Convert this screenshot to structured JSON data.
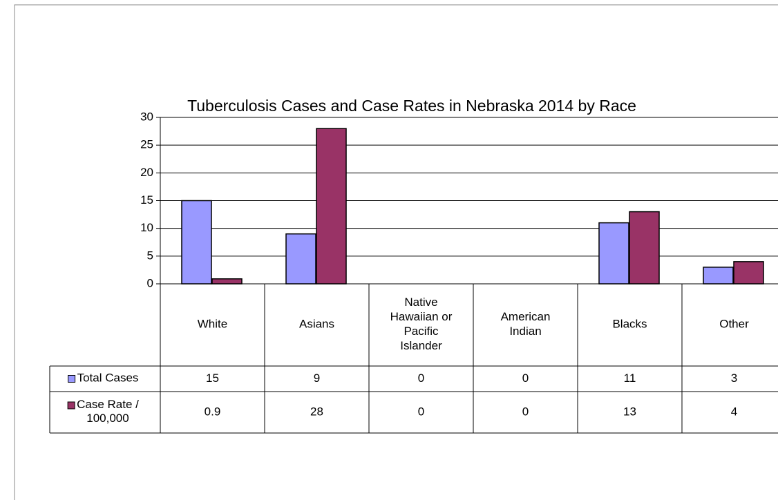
{
  "chart_data": {
    "type": "bar",
    "title": "Tuberculosis Cases and Case Rates in Nebraska 2014 by Race",
    "categories": [
      "White",
      "Asians",
      "Native Hawaiian or Pacific Islander",
      "American Indian",
      "Blacks",
      "Other"
    ],
    "series": [
      {
        "name": "Total Cases",
        "color": "#9999ff",
        "values": [
          15,
          9,
          0,
          0,
          11,
          3
        ]
      },
      {
        "name": "Case Rate / 100,000",
        "color": "#993366",
        "values": [
          0.9,
          28,
          0,
          0,
          13,
          4
        ]
      }
    ],
    "ylim": [
      0,
      30
    ],
    "yticks": [
      0,
      5,
      10,
      15,
      20,
      25,
      30
    ],
    "grid": true,
    "legend": "table"
  }
}
